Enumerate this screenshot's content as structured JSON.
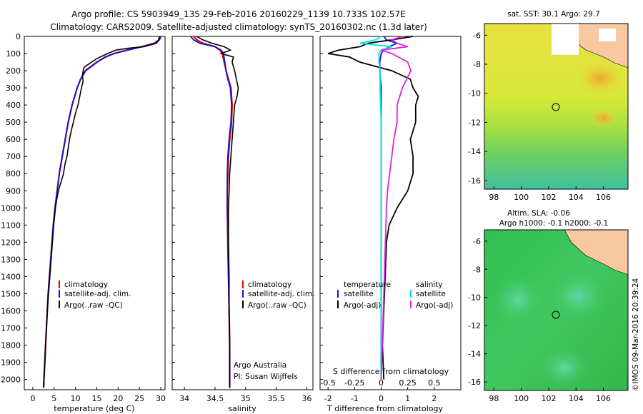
{
  "title_line1": "Argo profile: CS 5903949_135 29-Feb-2016 20160229_1139 10.733S 102.57E",
  "title_line2": "Climatology: CARS2009. Satellite-adjusted climatology: synTS_20160302.nc (1.3d later)",
  "colors": {
    "climatology": "#e00000",
    "satellite": "#1010e0",
    "argo": "#000000",
    "sat_salinity": "#00e0e0",
    "argo_salinity": "#e020e0"
  },
  "panels": {
    "temperature": {
      "xlabel": "temperature (deg C)",
      "xticks": [
        "0",
        "5",
        "10",
        "15",
        "20",
        "25",
        "30"
      ],
      "legend": [
        "climatology",
        "satellite-adj. clim.",
        "Argo(..raw -QC)"
      ]
    },
    "salinity": {
      "xlabel": "salinity",
      "xticks": [
        "34",
        "34.5",
        "35",
        "35.5",
        "36"
      ],
      "legend": [
        "climatology",
        "satellite-adj. clim.",
        "Argo(..raw -QC)"
      ],
      "note1": "Argo Australia",
      "note2": "PI: Susan Wijffels"
    },
    "difference": {
      "xlabel": "T difference from climatology",
      "xlabel2": "S difference from climatology",
      "xticks": [
        "-2",
        "-1",
        "0",
        "1",
        "2"
      ],
      "xticks2": [
        "-0.5",
        "-0.25",
        "0",
        "0.25",
        "0.5"
      ],
      "legend_t_title": "temperature",
      "legend_s_title": "salinity",
      "legend_t": [
        "satellite",
        "Argo(-adj)"
      ],
      "legend_s": [
        "satellite",
        "Argo(-adj)"
      ]
    }
  },
  "depth_ticks": [
    "0",
    "100",
    "200",
    "300",
    "400",
    "500",
    "600",
    "700",
    "800",
    "900",
    "1000",
    "1100",
    "1200",
    "1300",
    "1400",
    "1500",
    "1600",
    "1700",
    "1800",
    "1900",
    "2000"
  ],
  "maps": {
    "sst_title": "sat. SST: 30.1  Argo: 29.7",
    "sla_title1": "Altim. SLA: -0.06",
    "sla_title2": "Argo h1000: -0.1  h2000: -0.1",
    "lon_ticks": [
      "98",
      "100",
      "102",
      "104",
      "106"
    ],
    "lat_ticks": [
      "-6",
      "-8",
      "-10",
      "-12",
      "-14",
      "-16"
    ],
    "float_lon": 102.57,
    "float_lat": -10.733
  },
  "stamp": "©IMOS 09-Mar-2016 20:39:24",
  "chart_data": [
    {
      "type": "line",
      "title": "",
      "xlabel": "temperature (deg C)",
      "ylabel": "",
      "xlim": [
        -2,
        31
      ],
      "ylim": [
        2060,
        0
      ],
      "legend": "lower-left",
      "series": [
        {
          "name": "climatology",
          "depth": [
            0,
            20,
            40,
            60,
            80,
            100,
            120,
            150,
            200,
            250,
            300,
            400,
            500,
            600,
            700,
            800,
            900,
            1000,
            1100,
            1200,
            1300,
            1400,
            1500,
            1600,
            1700,
            1800,
            1900,
            2000,
            2050
          ],
          "values": [
            30.0,
            29.6,
            28.5,
            25.5,
            22.0,
            19.0,
            17.0,
            15.0,
            12.3,
            11.2,
            10.4,
            9.2,
            8.3,
            7.6,
            6.9,
            6.2,
            5.7,
            5.2,
            4.8,
            4.5,
            4.2,
            3.9,
            3.6,
            3.4,
            3.2,
            3.0,
            2.8,
            2.6,
            2.5
          ]
        },
        {
          "name": "satellite-adj. clim.",
          "depth": [
            0,
            20,
            40,
            60,
            80,
            100,
            120,
            150,
            200,
            250,
            300,
            400,
            500,
            600,
            700,
            800,
            900,
            1000,
            1100,
            1200,
            1300,
            1400,
            1500,
            1600,
            1700,
            1800,
            1900,
            2000,
            2050
          ],
          "values": [
            30.1,
            29.7,
            28.6,
            25.7,
            22.2,
            19.1,
            17.1,
            15.1,
            12.4,
            11.2,
            10.4,
            9.2,
            8.3,
            7.6,
            6.9,
            6.2,
            5.7,
            5.2,
            4.8,
            4.5,
            4.2,
            3.9,
            3.6,
            3.4,
            3.2,
            3.0,
            2.8,
            2.6,
            2.5
          ]
        },
        {
          "name": "Argo(..raw -QC)",
          "depth": [
            0,
            20,
            40,
            60,
            70,
            80,
            100,
            130,
            160,
            180,
            200,
            230,
            260,
            300,
            350,
            400,
            450,
            500,
            550,
            600,
            650,
            700,
            750,
            800,
            850,
            900,
            950,
            1000,
            1100,
            1200,
            1300,
            1400,
            1500,
            1600,
            1700,
            1800,
            1900,
            2000,
            2040
          ],
          "values": [
            29.7,
            29.5,
            29.0,
            26.0,
            22.0,
            19.5,
            17.5,
            15.0,
            13.2,
            12.0,
            11.8,
            11.6,
            11.8,
            11.4,
            11.0,
            10.6,
            10.0,
            9.5,
            9.0,
            8.6,
            8.3,
            8.0,
            7.5,
            7.2,
            6.6,
            6.0,
            5.6,
            5.3,
            4.9,
            4.6,
            4.3,
            4.0,
            3.7,
            3.4,
            3.2,
            3.0,
            2.8,
            2.6,
            2.6
          ]
        }
      ]
    },
    {
      "type": "line",
      "xlabel": "salinity",
      "xlim": [
        33.8,
        36.1
      ],
      "ylim": [
        2060,
        0
      ],
      "legend": "lower-right",
      "series": [
        {
          "name": "climatology",
          "depth": [
            0,
            20,
            40,
            60,
            80,
            100,
            150,
            200,
            250,
            300,
            400,
            500,
            600,
            700,
            800,
            900,
            1000,
            1200,
            1400,
            1600,
            1800,
            2000,
            2050
          ],
          "values": [
            34.15,
            34.2,
            34.3,
            34.5,
            34.58,
            34.62,
            34.65,
            34.68,
            34.72,
            34.76,
            34.78,
            34.77,
            34.74,
            34.72,
            34.71,
            34.7,
            34.7,
            34.71,
            34.72,
            34.73,
            34.74,
            34.74,
            34.74
          ]
        },
        {
          "name": "satellite-adj. clim.",
          "depth": [
            0,
            20,
            40,
            60,
            80,
            100,
            150,
            200,
            250,
            300,
            400,
            500,
            600,
            700,
            800,
            900,
            1000,
            1200,
            1400,
            1600,
            1800,
            2000,
            2050
          ],
          "values": [
            34.1,
            34.15,
            34.25,
            34.5,
            34.6,
            34.64,
            34.66,
            34.68,
            34.71,
            34.75,
            34.77,
            34.76,
            34.73,
            34.71,
            34.7,
            34.7,
            34.7,
            34.71,
            34.72,
            34.73,
            34.74,
            34.74,
            34.74
          ]
        },
        {
          "name": "Argo(..raw -QC)",
          "depth": [
            0,
            20,
            40,
            60,
            80,
            100,
            120,
            150,
            200,
            250,
            300,
            350,
            400,
            500,
            600,
            700,
            800,
            900,
            1000,
            1200,
            1400,
            1600,
            1800,
            2000,
            2040
          ],
          "values": [
            34.2,
            34.3,
            34.45,
            34.65,
            34.75,
            34.6,
            34.8,
            34.78,
            34.82,
            34.85,
            34.88,
            34.86,
            34.82,
            34.8,
            34.78,
            34.76,
            34.74,
            34.73,
            34.72,
            34.72,
            34.73,
            34.73,
            34.74,
            34.74,
            34.74
          ]
        }
      ]
    },
    {
      "type": "line",
      "xlabel": "T difference from climatology",
      "xlabel2": "S difference from climatology",
      "xlim": [
        -2.3,
        3.0
      ],
      "ylim": [
        2060,
        0
      ],
      "legend": "lower-center",
      "series": [
        {
          "name": "temperature satellite",
          "depth": [
            0,
            20,
            40,
            60,
            80,
            100,
            150,
            200,
            300,
            500,
            1000,
            1500,
            2000
          ],
          "values": [
            0.1,
            0.2,
            0.6,
            0.3,
            0.1,
            0.0,
            -0.05,
            -0.05,
            0.0,
            0.0,
            0.0,
            0.0,
            0.0
          ]
        },
        {
          "name": "temperature Argo(-adj)",
          "depth": [
            0,
            20,
            40,
            60,
            80,
            100,
            120,
            150,
            200,
            250,
            300,
            350,
            400,
            500,
            600,
            700,
            800,
            900,
            1000,
            1100,
            1200,
            1400,
            1600,
            1800,
            2000
          ],
          "values": [
            1.2,
            0.4,
            -0.5,
            -0.8,
            -1.6,
            -2.0,
            -1.2,
            -0.8,
            0.4,
            1.1,
            1.2,
            1.4,
            1.3,
            1.3,
            1.1,
            1.2,
            1.2,
            1.0,
            0.6,
            0.3,
            0.2,
            0.15,
            0.1,
            0.05,
            0.1
          ]
        },
        {
          "name": "salinity satellite",
          "depth": [
            0,
            20,
            40,
            60,
            80,
            100,
            150,
            200,
            300,
            500,
            1000,
            1500,
            2000
          ],
          "values": [
            0.0,
            -0.05,
            -0.2,
            0.1,
            0.0,
            -0.02,
            -0.02,
            -0.01,
            -0.01,
            0.0,
            0.0,
            0.0,
            0.0
          ]
        },
        {
          "name": "salinity Argo(-adj)",
          "depth": [
            0,
            20,
            40,
            60,
            80,
            100,
            150,
            200,
            300,
            400,
            500,
            600,
            700,
            800,
            900,
            1000,
            1200,
            1400,
            1600,
            1800,
            2000
          ],
          "values": [
            0.2,
            0.1,
            0.15,
            0.25,
            0.0,
            0.1,
            0.25,
            0.28,
            0.2,
            0.15,
            0.15,
            0.12,
            0.1,
            0.08,
            0.06,
            0.05,
            0.04,
            0.03,
            0.02,
            0.01,
            0.0
          ]
        }
      ]
    }
  ]
}
